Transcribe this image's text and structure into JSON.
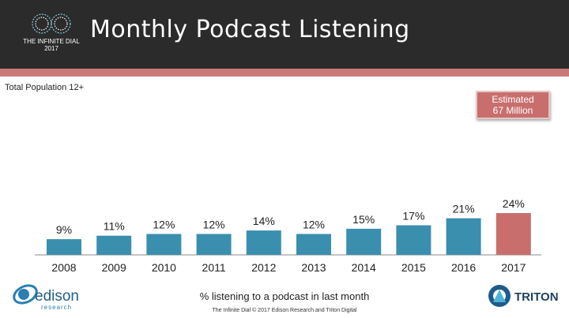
{
  "header": {
    "title": "Monthly Podcast Listening",
    "logo_line1": "THE INFINITE DIAL",
    "logo_line2": "2017"
  },
  "population_label": "Total Population 12+",
  "callout": {
    "line1": "Estimated",
    "line2": "67 Million"
  },
  "caption": "% listening to a podcast in last month",
  "footer": "The Infinite Dial  © 2017 Edison Research and Triton Digital",
  "logos": {
    "edison_name": "edison",
    "edison_sub": "research",
    "triton_name": "TRITON"
  },
  "colors": {
    "bar": "#3a8fae",
    "highlight": "#c86f6e",
    "header": "#2b2b2b",
    "stripe": "#c97a78"
  },
  "chart_data": {
    "type": "bar",
    "categories": [
      "2008",
      "2009",
      "2010",
      "2011",
      "2012",
      "2013",
      "2014",
      "2015",
      "2016",
      "2017"
    ],
    "values": [
      9,
      11,
      12,
      12,
      14,
      12,
      15,
      17,
      21,
      24
    ],
    "labels": [
      "9%",
      "11%",
      "12%",
      "12%",
      "14%",
      "12%",
      "15%",
      "17%",
      "21%",
      "24%"
    ],
    "highlight_category": "2017",
    "ylim": [
      0,
      24
    ],
    "grid": false,
    "legend": "none"
  }
}
